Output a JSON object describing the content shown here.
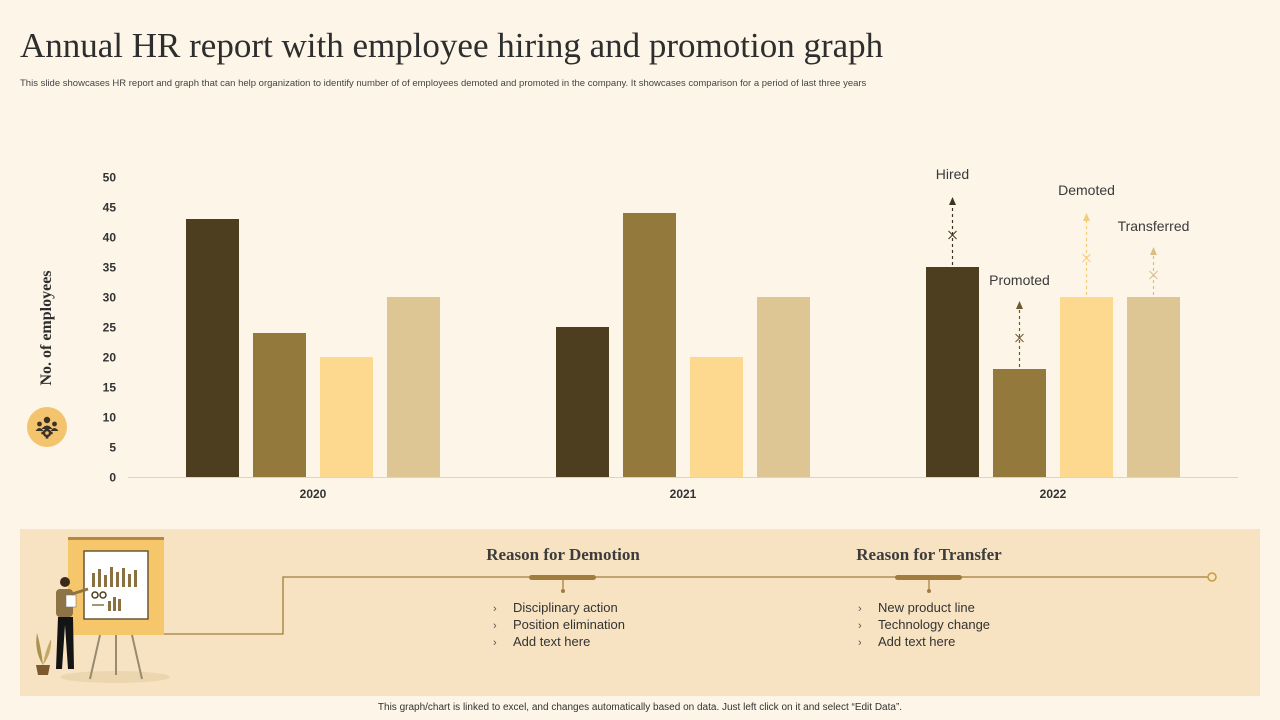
{
  "title": "Annual HR report with employee hiring and promotion graph",
  "subtitle": "This slide showcases HR report and graph that can help organization to identify number of of employees demoted and promoted in the company. It showcases comparison for a period of last three years",
  "icon": "people-gear-icon",
  "colors": {
    "background": "#fdf5e8",
    "hired": "#4e3e20",
    "promoted": "#94793d",
    "demoted": "#fdd88f",
    "transferred": "#dec594",
    "panel": "#f7e3c1",
    "timeline": "#a07d3e",
    "badge": "#f3c46d"
  },
  "chart_data": {
    "type": "bar",
    "categories": [
      "2020",
      "2021",
      "2022"
    ],
    "series": [
      {
        "name": "Hired",
        "values": [
          43,
          25,
          35
        ]
      },
      {
        "name": "Promoted",
        "values": [
          24,
          44,
          18
        ]
      },
      {
        "name": "Demoted",
        "values": [
          20,
          20,
          30
        ]
      },
      {
        "name": "Transferred",
        "values": [
          30,
          30,
          30
        ]
      }
    ],
    "ylabel": "No. of employees",
    "xlabel": "",
    "ylim": [
      0,
      50
    ],
    "yticks": [
      0,
      5,
      10,
      15,
      20,
      25,
      30,
      35,
      40,
      45,
      50
    ],
    "legend": "annotations on 2022 bars",
    "annotations": [
      "Hired",
      "Promoted",
      "Demoted",
      "Transferred"
    ],
    "grid": false
  },
  "reasons": [
    {
      "title": "Reason for Demotion",
      "items": [
        "Disciplinary action",
        "Position elimination",
        "Add text here"
      ]
    },
    {
      "title": "Reason for Transfer",
      "items": [
        "New product line",
        "Technology change",
        "Add text here"
      ]
    }
  ],
  "footer": "This graph/chart is linked to excel, and changes automatically based on data. Just left click on it and select “Edit Data”."
}
